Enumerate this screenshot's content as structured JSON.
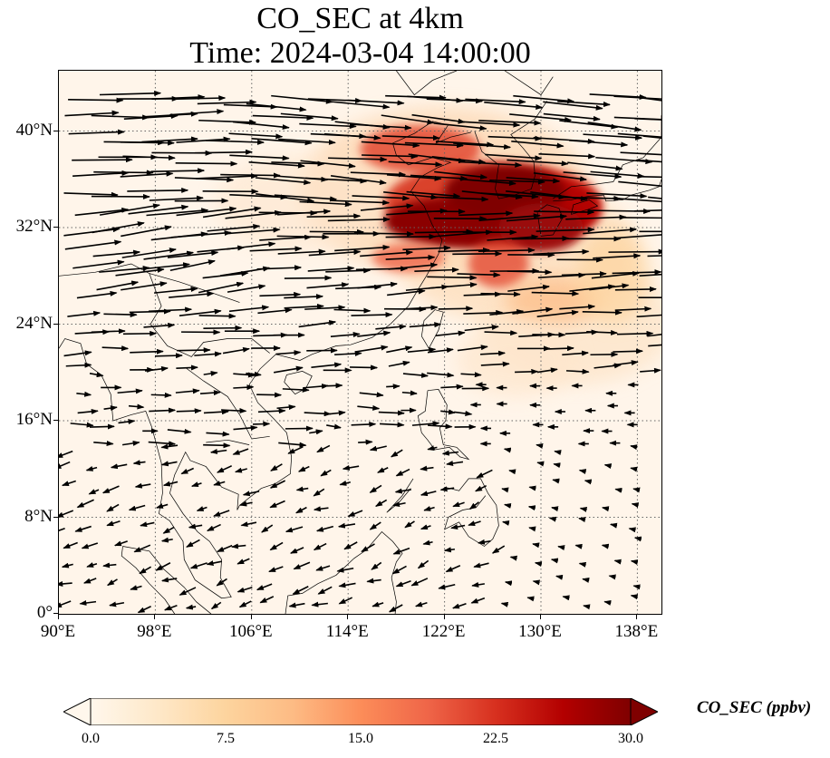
{
  "title_line1": "CO_SEC at 4km",
  "title_line2": "Time: 2024-03-04 14:00:00",
  "map": {
    "lon_range": [
      90,
      140
    ],
    "lat_range": [
      0,
      45
    ],
    "gridlines": "dotted",
    "lon_ticks": [
      {
        "lon": 90,
        "label": "90°E"
      },
      {
        "lon": 98,
        "label": "98°E"
      },
      {
        "lon": 106,
        "label": "106°E"
      },
      {
        "lon": 114,
        "label": "114°E"
      },
      {
        "lon": 122,
        "label": "122°E"
      },
      {
        "lon": 130,
        "label": "130°E"
      },
      {
        "lon": 138,
        "label": "138°E"
      }
    ],
    "lat_ticks": [
      {
        "lat": 0,
        "label": "0°"
      },
      {
        "lat": 8,
        "label": "8°N"
      },
      {
        "lat": 16,
        "label": "16°N"
      },
      {
        "lat": 24,
        "label": "24°N"
      },
      {
        "lat": 32,
        "label": "32°N"
      },
      {
        "lat": 40,
        "label": "40°N"
      }
    ],
    "field": "CO_SEC concentration, highest over East China Sea / Korea / southern Japan (~30 ppbv), moderate plume over eastern China and Pacific east of Taiwan, near zero over Southeast Asia and South China Sea",
    "wind": "strong westerlies north of ~20°N, weak easterly/northeasterly flow south of ~18°N"
  },
  "colorbar": {
    "label": "CO_SEC (ppbv)",
    "min": 0.0,
    "max": 30.0,
    "extend": "both",
    "colormap": "OrRd",
    "ticks": [
      "0.0",
      "7.5",
      "15.0",
      "22.5",
      "30.0"
    ],
    "colors": [
      "#fff7ec",
      "#fee8c8",
      "#fdd49e",
      "#fdbb84",
      "#fc8d59",
      "#ef6548",
      "#d7301f",
      "#b30000",
      "#7f0000"
    ]
  }
}
